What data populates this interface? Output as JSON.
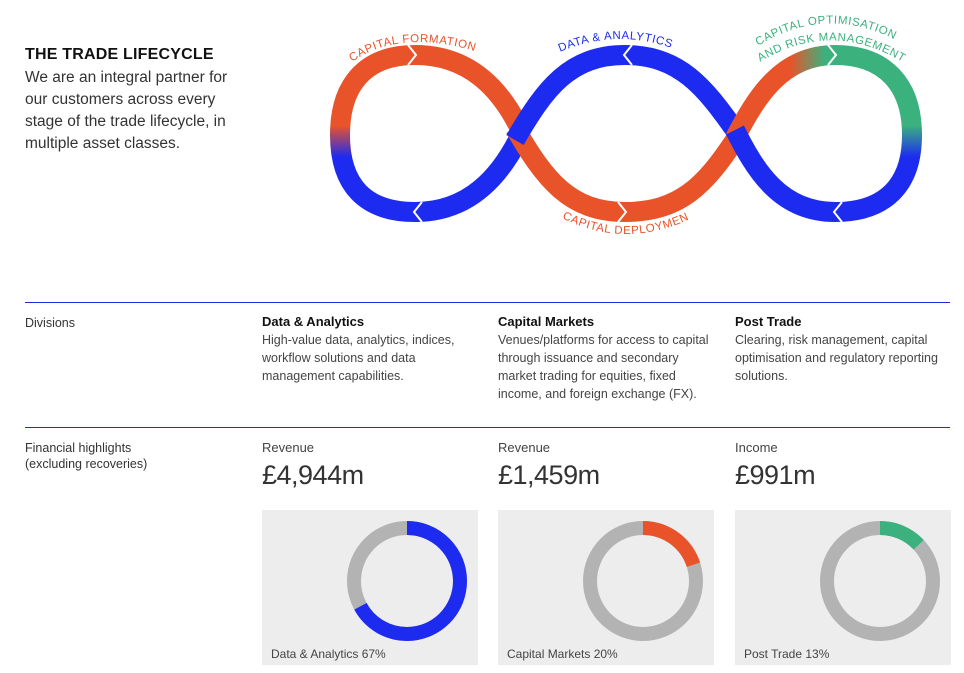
{
  "intro": {
    "title": "THE TRADE LIFECYCLE",
    "text": "We are an integral partner for our customers across every stage of the trade lifecycle, in multiple asset classes."
  },
  "lifecycle": {
    "stage_capital_formation": "CAPITAL FORMATION",
    "stage_data_analytics": "DATA & ANALYTICS",
    "stage_capital_deployment": "CAPITAL DEPLOYMENT",
    "stage_optimisation_line1": "CAPITAL OPTIMISATION",
    "stage_optimisation_line2": "AND RISK MANAGEMENT",
    "colors": {
      "orange": "#e9532a",
      "blue": "#1d2bf0",
      "green": "#3bb17e"
    }
  },
  "table": {
    "row1_label": "Divisions",
    "row2_label": "Financial highlights (excluding recoveries)",
    "divisions": [
      {
        "name": "Data & Analytics",
        "description": "High-value data, analytics, indices, workflow solutions and data management capabilities.",
        "metric_label": "Revenue",
        "metric_value": "£4,944m",
        "caption": "Data & Analytics 67%"
      },
      {
        "name": "Capital Markets",
        "description": "Venues/platforms for access to capital through issuance and secondary market trading for equities, fixed income, and foreign exchange (FX).",
        "metric_label": "Revenue",
        "metric_value": "£1,459m",
        "caption": "Capital Markets 20%"
      },
      {
        "name": "Post Trade",
        "description": "Clearing, risk management, capital optimisation and regulatory reporting solutions.",
        "metric_label": "Income",
        "metric_value": "£991m",
        "caption": "Post Trade 13%"
      }
    ]
  },
  "chart_data": [
    {
      "type": "pie",
      "labels": [
        "Data & Analytics"
      ],
      "values": [
        67
      ],
      "highlight_color": "#1d2bf0",
      "rest_color": "#b3b3b3"
    },
    {
      "type": "pie",
      "labels": [
        "Capital Markets"
      ],
      "values": [
        20
      ],
      "highlight_color": "#e9532a",
      "rest_color": "#b3b3b3"
    },
    {
      "type": "pie",
      "labels": [
        "Post Trade"
      ],
      "values": [
        13
      ],
      "highlight_color": "#3bb17e",
      "rest_color": "#b3b3b3"
    }
  ]
}
